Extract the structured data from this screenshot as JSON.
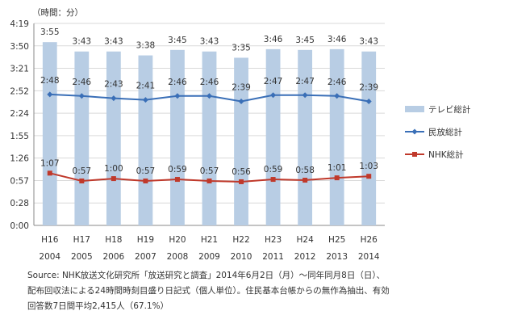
{
  "chart_data": {
    "type": "bar+line",
    "unit_label": "（時間：分）",
    "y_ticks": [
      "0:00",
      "0:28",
      "0:57",
      "1:26",
      "1:55",
      "2:24",
      "2:52",
      "3:21",
      "3:50",
      "4:19"
    ],
    "ylim_minutes": [
      0,
      259
    ],
    "categories": [
      "H16",
      "H17",
      "H18",
      "H19",
      "H20",
      "H21",
      "H22",
      "H23",
      "H24",
      "H25",
      "H26"
    ],
    "categories_year": [
      "2004",
      "2005",
      "2006",
      "2007",
      "2008",
      "2009",
      "2010",
      "2011",
      "2012",
      "2013",
      "2014"
    ],
    "series": [
      {
        "name": "テレビ総計",
        "kind": "bar",
        "color": "#b8cde4",
        "values_minutes": [
          235,
          223,
          223,
          218,
          225,
          223,
          215,
          226,
          225,
          226,
          223
        ],
        "labels": [
          "3:55",
          "3:43",
          "3:43",
          "3:38",
          "3:45",
          "3:43",
          "3:35",
          "3:46",
          "3:45",
          "3:46",
          "3:43"
        ]
      },
      {
        "name": "民放総計",
        "kind": "line",
        "color": "#3a6fb7",
        "marker": "diamond",
        "values_minutes": [
          168,
          166,
          163,
          161,
          166,
          166,
          159,
          167,
          167,
          166,
          159
        ],
        "labels": [
          "2:48",
          "2:46",
          "2:43",
          "2:41",
          "2:46",
          "2:46",
          "2:39",
          "2:47",
          "2:47",
          "2:46",
          "2:39"
        ]
      },
      {
        "name": "NHK総計",
        "kind": "line",
        "color": "#c0392b",
        "marker": "square",
        "values_minutes": [
          67,
          57,
          60,
          57,
          59,
          57,
          56,
          59,
          58,
          61,
          63
        ],
        "labels": [
          "1:07",
          "0:57",
          "1:00",
          "0:57",
          "0:59",
          "0:57",
          "0:56",
          "0:59",
          "0:58",
          "1:01",
          "1:03"
        ]
      }
    ],
    "legend_position": "right",
    "grid": "horizontal"
  },
  "source_lines": [
    "Source: NHK放送文化研究所「放送研究と調査」2014年6月2日（月）～同年同月8日（日）、",
    "配布回収法による24時間時刻目盛り日記式（個人単位）。住民基本台帳からの無作為抽出、有効",
    "回答数7日間平均2,415人（67.1%）"
  ]
}
